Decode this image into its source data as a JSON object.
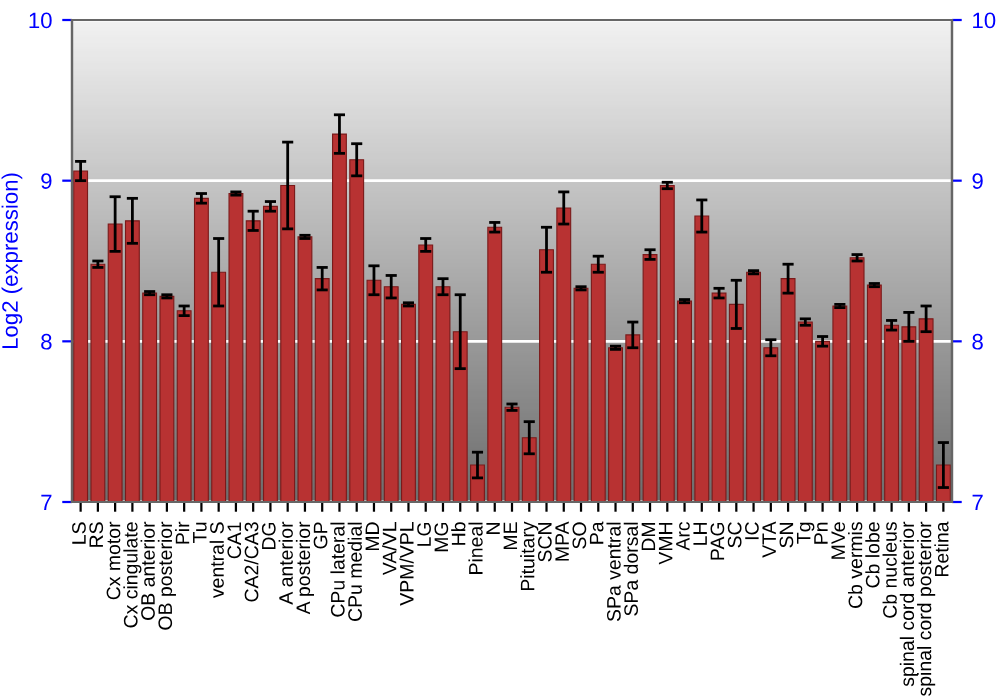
{
  "chart_data": {
    "type": "bar",
    "ylabel": "Log2 (expression)",
    "categories": [
      "LS",
      "RS",
      "Cx motor",
      "Cx cingulate",
      "OB anterior",
      "OB posterior",
      "Pir",
      "Tu",
      "ventral S",
      "CA1",
      "CA2/CA3",
      "DG",
      "A anterior",
      "A posterior",
      "GP",
      "CPu lateral",
      "CPu medial",
      "MD",
      "VA/VL",
      "VPM/VPL",
      "LG",
      "MG",
      "Hb",
      "Pineal",
      "N",
      "ME",
      "Pituitary",
      "SCN",
      "MPA",
      "SO",
      "Pa",
      "SPa ventral",
      "SPa dorsal",
      "DM",
      "VMH",
      "Arc",
      "LH",
      "PAG",
      "SC",
      "IC",
      "VTA",
      "SN",
      "Tg",
      "Pn",
      "MVe",
      "Cb vermis",
      "Cb lobe",
      "Cb nucleus",
      "spinal cord anterior",
      "spinal cord posterior",
      "Retina"
    ],
    "values": [
      9.06,
      8.48,
      8.73,
      8.75,
      8.3,
      8.28,
      8.19,
      8.89,
      8.43,
      8.92,
      8.75,
      8.84,
      8.97,
      8.65,
      8.39,
      9.29,
      9.13,
      8.38,
      8.34,
      8.23,
      8.6,
      8.34,
      8.06,
      7.23,
      8.71,
      7.59,
      7.4,
      8.57,
      8.83,
      8.33,
      8.48,
      7.96,
      8.04,
      8.54,
      8.97,
      8.25,
      8.78,
      8.3,
      8.23,
      8.43,
      7.96,
      8.39,
      8.12,
      8.0,
      8.22,
      8.52,
      8.35,
      8.1,
      8.09,
      8.14,
      7.23
    ],
    "errors": [
      0.06,
      0.02,
      0.17,
      0.14,
      0.01,
      0.01,
      0.03,
      0.03,
      0.21,
      0.01,
      0.06,
      0.03,
      0.27,
      0.01,
      0.07,
      0.12,
      0.1,
      0.09,
      0.07,
      0.01,
      0.04,
      0.05,
      0.23,
      0.08,
      0.03,
      0.02,
      0.1,
      0.14,
      0.1,
      0.01,
      0.05,
      0.01,
      0.08,
      0.03,
      0.02,
      0.01,
      0.1,
      0.03,
      0.15,
      0.01,
      0.05,
      0.09,
      0.02,
      0.03,
      0.01,
      0.02,
      0.01,
      0.03,
      0.09,
      0.08,
      0.14
    ],
    "color": "#b83232",
    "ylim": [
      7,
      10
    ],
    "yticks": [
      7,
      8,
      9,
      10
    ],
    "y2lim": [
      7,
      10
    ],
    "y2ticks": [
      7,
      8,
      9,
      10
    ],
    "grid": "y"
  }
}
